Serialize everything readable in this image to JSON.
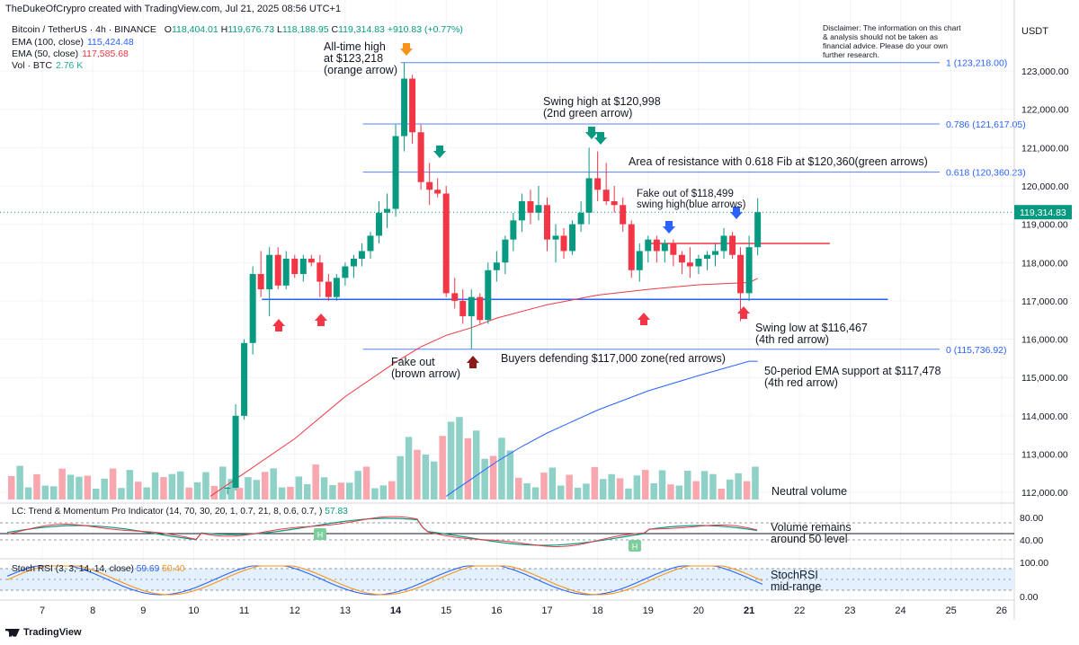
{
  "header": {
    "attribution": "TheDukeOfCrypro created with TradingView.com, Jul 21, 2025 08:56 UTC+1",
    "symbol": "Bitcoin / TetherUS · 4h · BINANCE",
    "ohlc": {
      "o_label": "O",
      "o": "118,404.01",
      "h_label": "H",
      "h": "119,676.73",
      "l_label": "L",
      "l": "118,188.95",
      "c_label": "C",
      "c": "119,314.83",
      "change": "+910.83 (+0.77%)"
    }
  },
  "legend": [
    {
      "label": "EMA (100, close)",
      "value": "115,424.48",
      "color": "#2962ff"
    },
    {
      "label": "EMA (50, close)",
      "value": "117,585.68",
      "color": "#f23645"
    },
    {
      "label": "Vol · BTC",
      "value": "2.76 K",
      "color": "#22ab94"
    }
  ],
  "disclaimer": "Disclaimer: The information on this chart & analysis should not be taken as financial advice. Please do your own further research.",
  "currency": "USDT",
  "current_price": "119,314.83",
  "annotations": {
    "ath": [
      "All-time high",
      "at $123,218",
      "(orange arrow)"
    ],
    "swing_high": [
      "Swing high at $120,998",
      "(2nd green arrow)"
    ],
    "resistance": [
      "Area of resistance with 0.618 Fib at $120,360(green arrows)"
    ],
    "fakeout_blue": [
      "Fake out of $118,499",
      "swing high(blue arrows)"
    ],
    "swing_low": [
      "Swing low at $116,467",
      "(4th red arrow)"
    ],
    "fakeout_brown": [
      "Fake out",
      "(brown arrow)"
    ],
    "buyers": [
      "Buyers defending $117,000 zone(red arrows)"
    ],
    "ema_support": [
      "50-period EMA support at $117,478",
      "(4th red arrow)"
    ],
    "neutral_volume": [
      "Neutral volume"
    ],
    "volume_50": [
      "Volume remains",
      "around 50 level"
    ],
    "stoch_mid": [
      "StochRSI",
      "mid-range"
    ]
  },
  "indicators": {
    "lc": {
      "label": "LC: Trend & Momentum Pro Indicator (14, 70, 30, 20, 1, 0.7, 21, 8, 0.6, 0.7, )",
      "value": "57.83",
      "ticks": [
        "80.00",
        "40.00"
      ],
      "marker": "H"
    },
    "stoch": {
      "label": "Stoch RSI (3, 3, 14, 14, close)",
      "k": "59.69",
      "d": "50.40",
      "ticks": [
        "100.00",
        "0.00"
      ]
    }
  },
  "footer": {
    "brand": "TradingView"
  },
  "colors": {
    "up": "#089981",
    "down": "#f23645",
    "ema50": "#f23645",
    "ema100": "#2962ff",
    "fib": "#2962ff",
    "vol_up": "#8fd1c7",
    "vol_down": "#f7a7ad",
    "orange": "#f7931a",
    "green_arrow": "#089981",
    "blue_arrow": "#2962ff",
    "red_arrow": "#f23645",
    "brown_arrow": "#8b1a1a"
  },
  "chart_data": {
    "type": "candlestick",
    "timeframe": "4h",
    "x_ticks": [
      "7",
      "8",
      "9",
      "10",
      "11",
      "12",
      "13",
      "14",
      "15",
      "16",
      "17",
      "18",
      "19",
      "20",
      "21",
      "22",
      "23",
      "24",
      "25",
      "26"
    ],
    "y_ticks": [
      112000,
      113000,
      114000,
      115000,
      116000,
      117000,
      118000,
      119000,
      120000,
      121000,
      122000,
      123000
    ],
    "ylim": [
      111750,
      124200
    ],
    "fib_levels": [
      {
        "ratio": "1",
        "label": "1 (123,218.00)",
        "price": 123218
      },
      {
        "ratio": "0.786",
        "label": "0.786 (121,617.05)",
        "price": 121617.05
      },
      {
        "ratio": "0.618",
        "label": "0.618 (120,360.23)",
        "price": 120360.23
      },
      {
        "ratio": "0",
        "label": "0 (115,736.92)",
        "price": 115736.92
      }
    ],
    "horizontal_levels": [
      {
        "name": "support",
        "price": 117040,
        "from_day": 11.35,
        "to_day": 23.75,
        "color": "#2962ff"
      },
      {
        "name": "swing-high",
        "price": 118499,
        "from_day": 19.0,
        "to_day": 22.6,
        "color": "#f23645"
      }
    ],
    "candles": [
      [
        10.67,
        112100,
        112150,
        111950,
        112120
      ],
      [
        10.83,
        112120,
        114300,
        112050,
        114000
      ],
      [
        11.0,
        114000,
        116000,
        113900,
        115900
      ],
      [
        11.17,
        115900,
        117900,
        115600,
        117700
      ],
      [
        11.33,
        117700,
        118300,
        117100,
        117300
      ],
      [
        11.5,
        117300,
        118400,
        116600,
        118200
      ],
      [
        11.67,
        118200,
        118400,
        117300,
        117400
      ],
      [
        11.83,
        117400,
        118300,
        117300,
        118100
      ],
      [
        12.0,
        118100,
        118200,
        117600,
        117700
      ],
      [
        12.17,
        117700,
        118200,
        117500,
        118100
      ],
      [
        12.33,
        118100,
        118200,
        117900,
        118000
      ],
      [
        12.5,
        118000,
        118200,
        117100,
        117500
      ],
      [
        12.67,
        117500,
        117700,
        117000,
        117100
      ],
      [
        12.83,
        117100,
        117700,
        117000,
        117600
      ],
      [
        13.0,
        117600,
        118000,
        117400,
        117900
      ],
      [
        13.17,
        117900,
        118200,
        117600,
        118100
      ],
      [
        13.33,
        118100,
        118500,
        117900,
        118300
      ],
      [
        13.5,
        118300,
        118800,
        118100,
        118700
      ],
      [
        13.67,
        118700,
        119600,
        118500,
        119300
      ],
      [
        13.83,
        119300,
        119800,
        118900,
        119400
      ],
      [
        14.0,
        119400,
        121600,
        119200,
        121300
      ],
      [
        14.17,
        121300,
        123218,
        120900,
        122800
      ],
      [
        14.33,
        122800,
        122900,
        121100,
        121400
      ],
      [
        14.5,
        121400,
        121600,
        119900,
        120100
      ],
      [
        14.67,
        120100,
        120600,
        119500,
        119900
      ],
      [
        14.83,
        119900,
        120200,
        119700,
        119800
      ],
      [
        15.0,
        119800,
        120000,
        117100,
        117200
      ],
      [
        15.17,
        117200,
        117600,
        116800,
        117000
      ],
      [
        15.33,
        117000,
        117300,
        116400,
        116600
      ],
      [
        15.5,
        116600,
        117300,
        115736,
        117100
      ],
      [
        15.67,
        117100,
        117200,
        116400,
        116500
      ],
      [
        15.83,
        116500,
        118000,
        116400,
        117800
      ],
      [
        16.0,
        117800,
        118300,
        117500,
        118000
      ],
      [
        16.17,
        118000,
        118700,
        117700,
        118600
      ],
      [
        16.33,
        118600,
        119300,
        118300,
        119100
      ],
      [
        16.5,
        119100,
        119800,
        118800,
        119600
      ],
      [
        16.67,
        119600,
        119900,
        119000,
        119300
      ],
      [
        16.83,
        119300,
        120000,
        119100,
        119500
      ],
      [
        17.0,
        119500,
        119700,
        118300,
        118600
      ],
      [
        17.17,
        118600,
        119000,
        118000,
        118700
      ],
      [
        17.33,
        118700,
        118900,
        118100,
        118300
      ],
      [
        17.5,
        118300,
        119100,
        118200,
        119000
      ],
      [
        17.67,
        119000,
        119600,
        118800,
        119300
      ],
      [
        17.83,
        119300,
        120998,
        119000,
        120200
      ],
      [
        18.0,
        120200,
        120900,
        119600,
        119900
      ],
      [
        18.17,
        119900,
        120600,
        119500,
        119600
      ],
      [
        18.33,
        119600,
        120000,
        119300,
        119500
      ],
      [
        18.5,
        119500,
        119700,
        118800,
        119000
      ],
      [
        18.67,
        119000,
        119100,
        117600,
        117800
      ],
      [
        18.83,
        117800,
        118500,
        117500,
        118300
      ],
      [
        19.0,
        118300,
        118700,
        118000,
        118600
      ],
      [
        19.17,
        118600,
        118700,
        118000,
        118300
      ],
      [
        19.33,
        118300,
        118600,
        118000,
        118500
      ],
      [
        19.5,
        118500,
        118600,
        117900,
        118200
      ],
      [
        19.67,
        118200,
        118300,
        117700,
        118000
      ],
      [
        19.83,
        118000,
        118400,
        117600,
        117900
      ],
      [
        20.0,
        117900,
        118200,
        117700,
        118100
      ],
      [
        20.17,
        118100,
        118300,
        117800,
        118200
      ],
      [
        20.33,
        118200,
        118500,
        117900,
        118300
      ],
      [
        20.5,
        118300,
        118900,
        118100,
        118700
      ],
      [
        20.67,
        118700,
        118800,
        118100,
        118200
      ],
      [
        20.83,
        118200,
        118400,
        116467,
        117200
      ],
      [
        21.0,
        117200,
        118700,
        117000,
        118400
      ],
      [
        21.17,
        118400,
        119676,
        118188,
        119314
      ]
    ],
    "ema50": [
      [
        10.33,
        111900
      ],
      [
        11.0,
        112500
      ],
      [
        12.0,
        113400
      ],
      [
        13.0,
        114500
      ],
      [
        14.0,
        115400
      ],
      [
        14.5,
        115800
      ],
      [
        15.0,
        116100
      ],
      [
        15.5,
        116300
      ],
      [
        16.0,
        116550
      ],
      [
        17.0,
        116900
      ],
      [
        18.0,
        117150
      ],
      [
        19.0,
        117300
      ],
      [
        20.0,
        117420
      ],
      [
        21.0,
        117478
      ],
      [
        21.17,
        117585
      ]
    ],
    "ema100": [
      [
        15.0,
        111900
      ],
      [
        15.5,
        112350
      ],
      [
        16.0,
        112800
      ],
      [
        16.5,
        113200
      ],
      [
        17.0,
        113550
      ],
      [
        18.0,
        114150
      ],
      [
        19.0,
        114650
      ],
      [
        20.0,
        115050
      ],
      [
        21.0,
        115424
      ],
      [
        21.17,
        115424
      ]
    ],
    "volume_bars": 89,
    "volume_note": "Vol · BTC 2.76 K"
  }
}
